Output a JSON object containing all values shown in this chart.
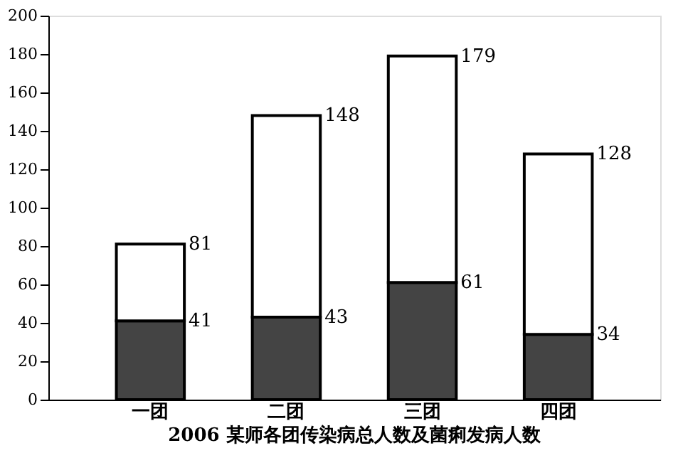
{
  "chart_data": {
    "type": "bar",
    "title": "2006 某师各团传染病总人数及菌痢发病人数",
    "categories": [
      "一团",
      "二团",
      "三团",
      "四团"
    ],
    "stacked": true,
    "series": [
      {
        "color": "#444444",
        "values": [
          41,
          43,
          61,
          34
        ],
        "value_labels": [
          "41",
          "43",
          "61",
          "34"
        ]
      },
      {
        "color": "#ffffff",
        "values": [
          40,
          105,
          118,
          94
        ]
      }
    ],
    "totals": [
      "81",
      "148",
      "179",
      "128"
    ],
    "ylim": [
      0,
      200
    ],
    "yticks": [
      0,
      20,
      40,
      60,
      80,
      100,
      120,
      140,
      160,
      180,
      200
    ],
    "grid": false,
    "legend": false
  }
}
